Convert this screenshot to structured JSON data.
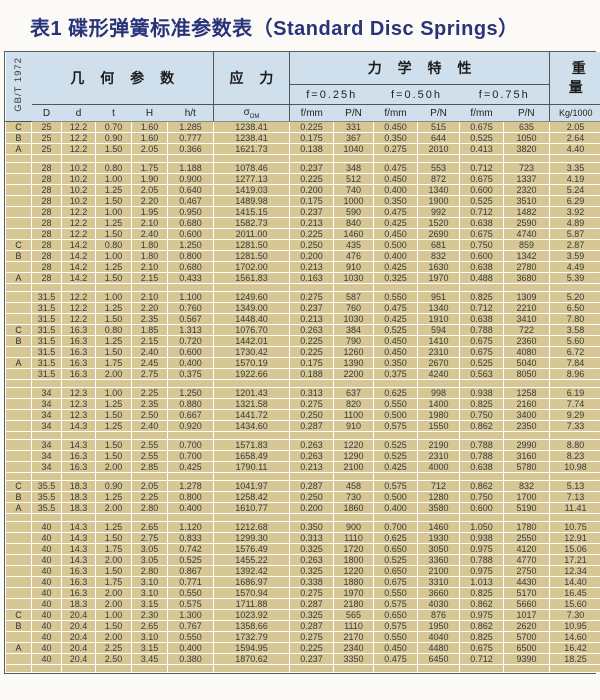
{
  "title": "表1 碟形弹簧标准参数表（Standard Disc Springs）",
  "standard": "GB/T 1972",
  "header": {
    "geometry": "几 何 参 数",
    "stress": "应 力",
    "mechanical": "力 学 特 性",
    "weight": "重\n量",
    "deflections": [
      "f=0.25h",
      "f=0.50h",
      "f=0.75h"
    ],
    "columns": {
      "c0": "D",
      "c1": "d",
      "c2": "t",
      "c3": "H",
      "c4": "h/t",
      "sigma": {
        "base": "σ",
        "sub": "OM"
      },
      "c6": "f/mm",
      "c7": "P/N",
      "c8": "f/mm",
      "c9": "P/N",
      "c10": "f/mm",
      "c11": "P/N",
      "c12": "Kg/1000"
    }
  },
  "colors": {
    "header_bg": "#cfdfeb",
    "row_bg": "#d6c795",
    "title_color": "#293379",
    "grid_line": "#ffffff",
    "rule_line": "#555555"
  },
  "table": {
    "rows": [
      [
        "C",
        "25",
        "12.2",
        "0.70",
        "1.60",
        "1.285",
        "1238.41",
        "0.225",
        "331",
        "0.450",
        "515",
        "0.675",
        "635",
        "2.05"
      ],
      [
        "B",
        "25",
        "12.2",
        "0.90",
        "1.60",
        "0.777",
        "1238.41",
        "0.175",
        "367",
        "0.350",
        "644",
        "0.525",
        "1050",
        "2.64"
      ],
      [
        "A",
        "25",
        "12.2",
        "1.50",
        "2.05",
        "0.366",
        "1621.73",
        "0.138",
        "1040",
        "0.275",
        "2010",
        "0.413",
        "3820",
        "4.40"
      ],
      [],
      [
        "",
        "28",
        "10.2",
        "0.80",
        "1.75",
        "1.188",
        "1078.46",
        "0.237",
        "348",
        "0.475",
        "553",
        "0.712",
        "723",
        "3.35"
      ],
      [
        "",
        "28",
        "10.2",
        "1.00",
        "1.90",
        "0.900",
        "1277.13",
        "0.225",
        "512",
        "0.450",
        "872",
        "0.675",
        "1337",
        "4.19"
      ],
      [
        "",
        "28",
        "10.2",
        "1.25",
        "2.05",
        "0.640",
        "1419.03",
        "0.200",
        "740",
        "0.400",
        "1340",
        "0.600",
        "2320",
        "5.24"
      ],
      [
        "",
        "28",
        "10.2",
        "1.50",
        "2.20",
        "0.467",
        "1489.98",
        "0.175",
        "1000",
        "0.350",
        "1900",
        "0.525",
        "3510",
        "6.29"
      ],
      [
        "",
        "28",
        "12.2",
        "1.00",
        "1.95",
        "0.950",
        "1415.15",
        "0.237",
        "590",
        "0.475",
        "992",
        "0.712",
        "1482",
        "3.92"
      ],
      [
        "",
        "28",
        "12.2",
        "1.25",
        "2.10",
        "0.680",
        "1582.73",
        "0.213",
        "840",
        "0.425",
        "1520",
        "0.638",
        "2590",
        "4.89"
      ],
      [
        "",
        "28",
        "12.2",
        "1.50",
        "2.40",
        "0.600",
        "2011.00",
        "0.225",
        "1460",
        "0.450",
        "2690",
        "0.675",
        "4740",
        "5.87"
      ],
      [
        "C",
        "28",
        "14.2",
        "0.80",
        "1.80",
        "1.250",
        "1281.50",
        "0.250",
        "435",
        "0.500",
        "681",
        "0.750",
        "859",
        "2.87"
      ],
      [
        "B",
        "28",
        "14.2",
        "1.00",
        "1.80",
        "0.800",
        "1281.50",
        "0.200",
        "476",
        "0.400",
        "832",
        "0.600",
        "1342",
        "3.59"
      ],
      [
        "",
        "28",
        "14.2",
        "1.25",
        "2.10",
        "0.680",
        "1702.00",
        "0.213",
        "910",
        "0.425",
        "1630",
        "0.638",
        "2780",
        "4.49"
      ],
      [
        "A",
        "28",
        "14.2",
        "1.50",
        "2.15",
        "0.433",
        "1561.83",
        "0.163",
        "1030",
        "0.325",
        "1970",
        "0.488",
        "3680",
        "5.39"
      ],
      [],
      [
        "",
        "31.5",
        "12.2",
        "1.00",
        "2.10",
        "1.100",
        "1249.60",
        "0.275",
        "587",
        "0.550",
        "951",
        "0.825",
        "1309",
        "5.20"
      ],
      [
        "",
        "31.5",
        "12.2",
        "1.25",
        "2.20",
        "0.760",
        "1349.00",
        "0.237",
        "760",
        "0.475",
        "1340",
        "0.712",
        "2210",
        "6.50"
      ],
      [
        "",
        "31.5",
        "12.2",
        "1.50",
        "2.35",
        "0.567",
        "1448.40",
        "0.213",
        "1030",
        "0.425",
        "1910",
        "0.638",
        "3410",
        "7.80"
      ],
      [
        "C",
        "31.5",
        "16.3",
        "0.80",
        "1.85",
        "1.313",
        "1076.70",
        "0.263",
        "384",
        "0.525",
        "594",
        "0.788",
        "722",
        "3.58"
      ],
      [
        "B",
        "31.5",
        "16.3",
        "1.25",
        "2.15",
        "0.720",
        "1442.01",
        "0.225",
        "790",
        "0.450",
        "1410",
        "0.675",
        "2360",
        "5.60"
      ],
      [
        "",
        "31.5",
        "16.3",
        "1.50",
        "2.40",
        "0.600",
        "1730.42",
        "0.225",
        "1260",
        "0.450",
        "2310",
        "0.675",
        "4080",
        "6.72"
      ],
      [
        "A",
        "31.5",
        "16.3",
        "1.75",
        "2.45",
        "0.400",
        "1570.19",
        "0.175",
        "1390",
        "0.350",
        "2670",
        "0.525",
        "5040",
        "7.84"
      ],
      [
        "",
        "31.5",
        "16.3",
        "2.00",
        "2.75",
        "0.375",
        "1922.66",
        "0.188",
        "2200",
        "0.375",
        "4240",
        "0.563",
        "8050",
        "8.96"
      ],
      [],
      [
        "",
        "34",
        "12.3",
        "1.00",
        "2.25",
        "1.250",
        "1201.43",
        "0.313",
        "637",
        "0.625",
        "998",
        "0.938",
        "1258",
        "6.19"
      ],
      [
        "",
        "34",
        "12.3",
        "1.25",
        "2.35",
        "0.880",
        "1321.58",
        "0.275",
        "820",
        "0.550",
        "1400",
        "0.825",
        "2160",
        "7.74"
      ],
      [
        "",
        "34",
        "12.3",
        "1.50",
        "2.50",
        "0.667",
        "1441.72",
        "0.250",
        "1100",
        "0.500",
        "1980",
        "0.750",
        "3400",
        "9.29"
      ],
      [
        "",
        "34",
        "14.3",
        "1.25",
        "2.40",
        "0.920",
        "1434.60",
        "0.287",
        "910",
        "0.575",
        "1550",
        "0.862",
        "2350",
        "7.33"
      ],
      [],
      [
        "",
        "34",
        "14.3",
        "1.50",
        "2.55",
        "0.700",
        "1571.83",
        "0.263",
        "1220",
        "0.525",
        "2190",
        "0.788",
        "2990",
        "8.80"
      ],
      [
        "",
        "34",
        "16.3",
        "1.50",
        "2.55",
        "0.700",
        "1658.49",
        "0.263",
        "1290",
        "0.525",
        "2310",
        "0.788",
        "3160",
        "8.23"
      ],
      [
        "",
        "34",
        "16.3",
        "2.00",
        "2.85",
        "0.425",
        "1790.11",
        "0.213",
        "2100",
        "0.425",
        "4000",
        "0.638",
        "5780",
        "10.98"
      ],
      [],
      [
        "C",
        "35.5",
        "18.3",
        "0.90",
        "2.05",
        "1.278",
        "1041.97",
        "0.287",
        "458",
        "0.575",
        "712",
        "0.862",
        "832",
        "5.13"
      ],
      [
        "B",
        "35.5",
        "18.3",
        "1.25",
        "2.25",
        "0.800",
        "1258.42",
        "0.250",
        "730",
        "0.500",
        "1280",
        "0.750",
        "1700",
        "7.13"
      ],
      [
        "A",
        "35.5",
        "18.3",
        "2.00",
        "2.80",
        "0.400",
        "1610.77",
        "0.200",
        "1860",
        "0.400",
        "3580",
        "0.600",
        "5190",
        "11.41"
      ],
      [],
      [
        "",
        "40",
        "14.3",
        "1.25",
        "2.65",
        "1.120",
        "1212.68",
        "0.350",
        "900",
        "0.700",
        "1460",
        "1.050",
        "1780",
        "10.75"
      ],
      [
        "",
        "40",
        "14.3",
        "1.50",
        "2.75",
        "0.833",
        "1299.30",
        "0.313",
        "1110",
        "0.625",
        "1930",
        "0.938",
        "2550",
        "12.91"
      ],
      [
        "",
        "40",
        "14.3",
        "1.75",
        "3.05",
        "0.742",
        "1576.49",
        "0.325",
        "1720",
        "0.650",
        "3050",
        "0.975",
        "4120",
        "15.06"
      ],
      [
        "",
        "40",
        "14.3",
        "2.00",
        "3.05",
        "0.525",
        "1455.22",
        "0.263",
        "1800",
        "0.525",
        "3360",
        "0.788",
        "4770",
        "17.21"
      ],
      [
        "",
        "40",
        "16.3",
        "1.50",
        "2.80",
        "0.867",
        "1392.42",
        "0.325",
        "1220",
        "0.650",
        "2100",
        "0.975",
        "2750",
        "12.34"
      ],
      [
        "",
        "40",
        "16.3",
        "1.75",
        "3.10",
        "0.771",
        "1686.97",
        "0.338",
        "1880",
        "0.675",
        "3310",
        "1.013",
        "4430",
        "14.40"
      ],
      [
        "",
        "40",
        "16.3",
        "2.00",
        "3.10",
        "0.550",
        "1570.94",
        "0.275",
        "1970",
        "0.550",
        "3660",
        "0.825",
        "5170",
        "16.45"
      ],
      [
        "",
        "40",
        "18.3",
        "2.00",
        "3.15",
        "0.575",
        "1711.88",
        "0.287",
        "2180",
        "0.575",
        "4030",
        "0.862",
        "5660",
        "15.60"
      ],
      [
        "C",
        "40",
        "20.4",
        "1.00",
        "2.30",
        "1.300",
        "1023.92",
        "0.325",
        "565",
        "0.650",
        "876",
        "0.975",
        "1017",
        "7.30"
      ],
      [
        "B",
        "40",
        "20.4",
        "1.50",
        "2.65",
        "0.767",
        "1358.66",
        "0.287",
        "1110",
        "0.575",
        "1950",
        "0.862",
        "2620",
        "10.95"
      ],
      [
        "",
        "40",
        "20.4",
        "2.00",
        "3.10",
        "0.550",
        "1732.79",
        "0.275",
        "2170",
        "0.550",
        "4040",
        "0.825",
        "5700",
        "14.60"
      ],
      [
        "A",
        "40",
        "20.4",
        "2.25",
        "3.15",
        "0.400",
        "1594.95",
        "0.225",
        "2340",
        "0.450",
        "4480",
        "0.675",
        "6500",
        "16.42"
      ],
      [
        "",
        "40",
        "20.4",
        "2.50",
        "3.45",
        "0.380",
        "1870.62",
        "0.237",
        "3350",
        "0.475",
        "6450",
        "0.712",
        "9390",
        "18.25"
      ],
      []
    ]
  }
}
